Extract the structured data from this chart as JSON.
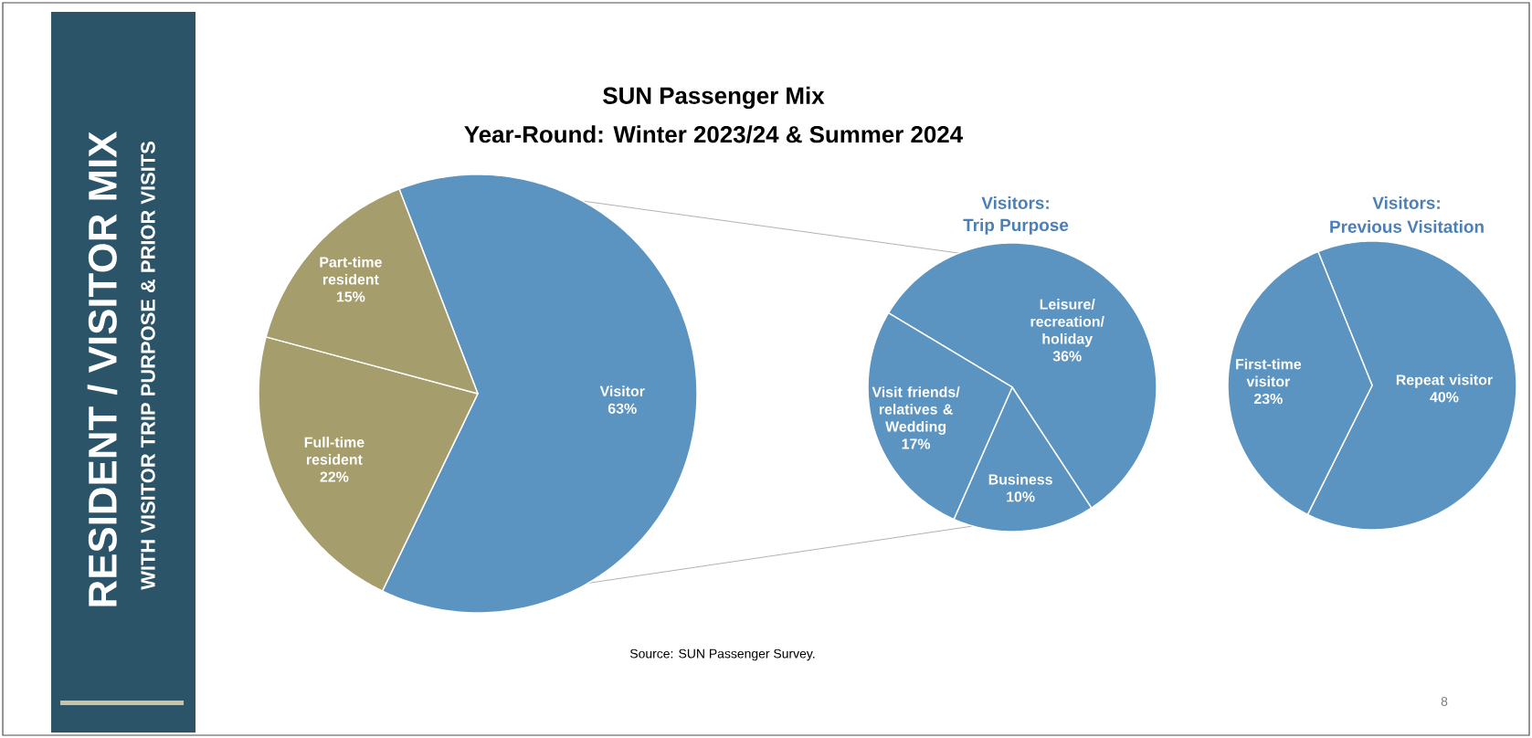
{
  "chart_data": [
    {
      "type": "other",
      "title": "RESIDENT / VISITOR MIX",
      "subtitle": "WITH VISITOR TRIP PURPOSE & PRIOR VISITS",
      "annotations": [
        "8"
      ]
    },
    {
      "type": "pie",
      "title": "SUN Passenger Mix",
      "subtitle": "Year-Round: Winter 2023/24 & Summer 2024",
      "categories": [
        "Visitor",
        "Full-time resident",
        "Part-time resident"
      ],
      "values": [
        63,
        22,
        15
      ],
      "value_labels": [
        "63%",
        "22%",
        "15%"
      ],
      "colors": [
        "#5b93c1",
        "#a59d6b",
        "#a59d6b"
      ],
      "annotations": [
        "Source: SUN Passenger Survey."
      ]
    },
    {
      "type": "pie",
      "title": "Visitors:",
      "subtitle": "Trip Purpose",
      "categories": [
        "Leisure/ recreation/ holiday",
        "Business",
        "Visit friends/ relatives & Wedding"
      ],
      "values": [
        36,
        10,
        17
      ],
      "value_labels": [
        "36%",
        "10%",
        "17%"
      ],
      "colors": [
        "#5b93c1",
        "#5b93c1",
        "#5b93c1"
      ]
    },
    {
      "type": "pie",
      "title": "Visitors:",
      "subtitle": "Previous Visitation",
      "categories": [
        "Repeat visitor",
        "First-time visitor"
      ],
      "values": [
        40,
        23
      ],
      "value_labels": [
        "40%",
        "23%"
      ],
      "colors": [
        "#5b93c1",
        "#5b93c1"
      ]
    }
  ]
}
